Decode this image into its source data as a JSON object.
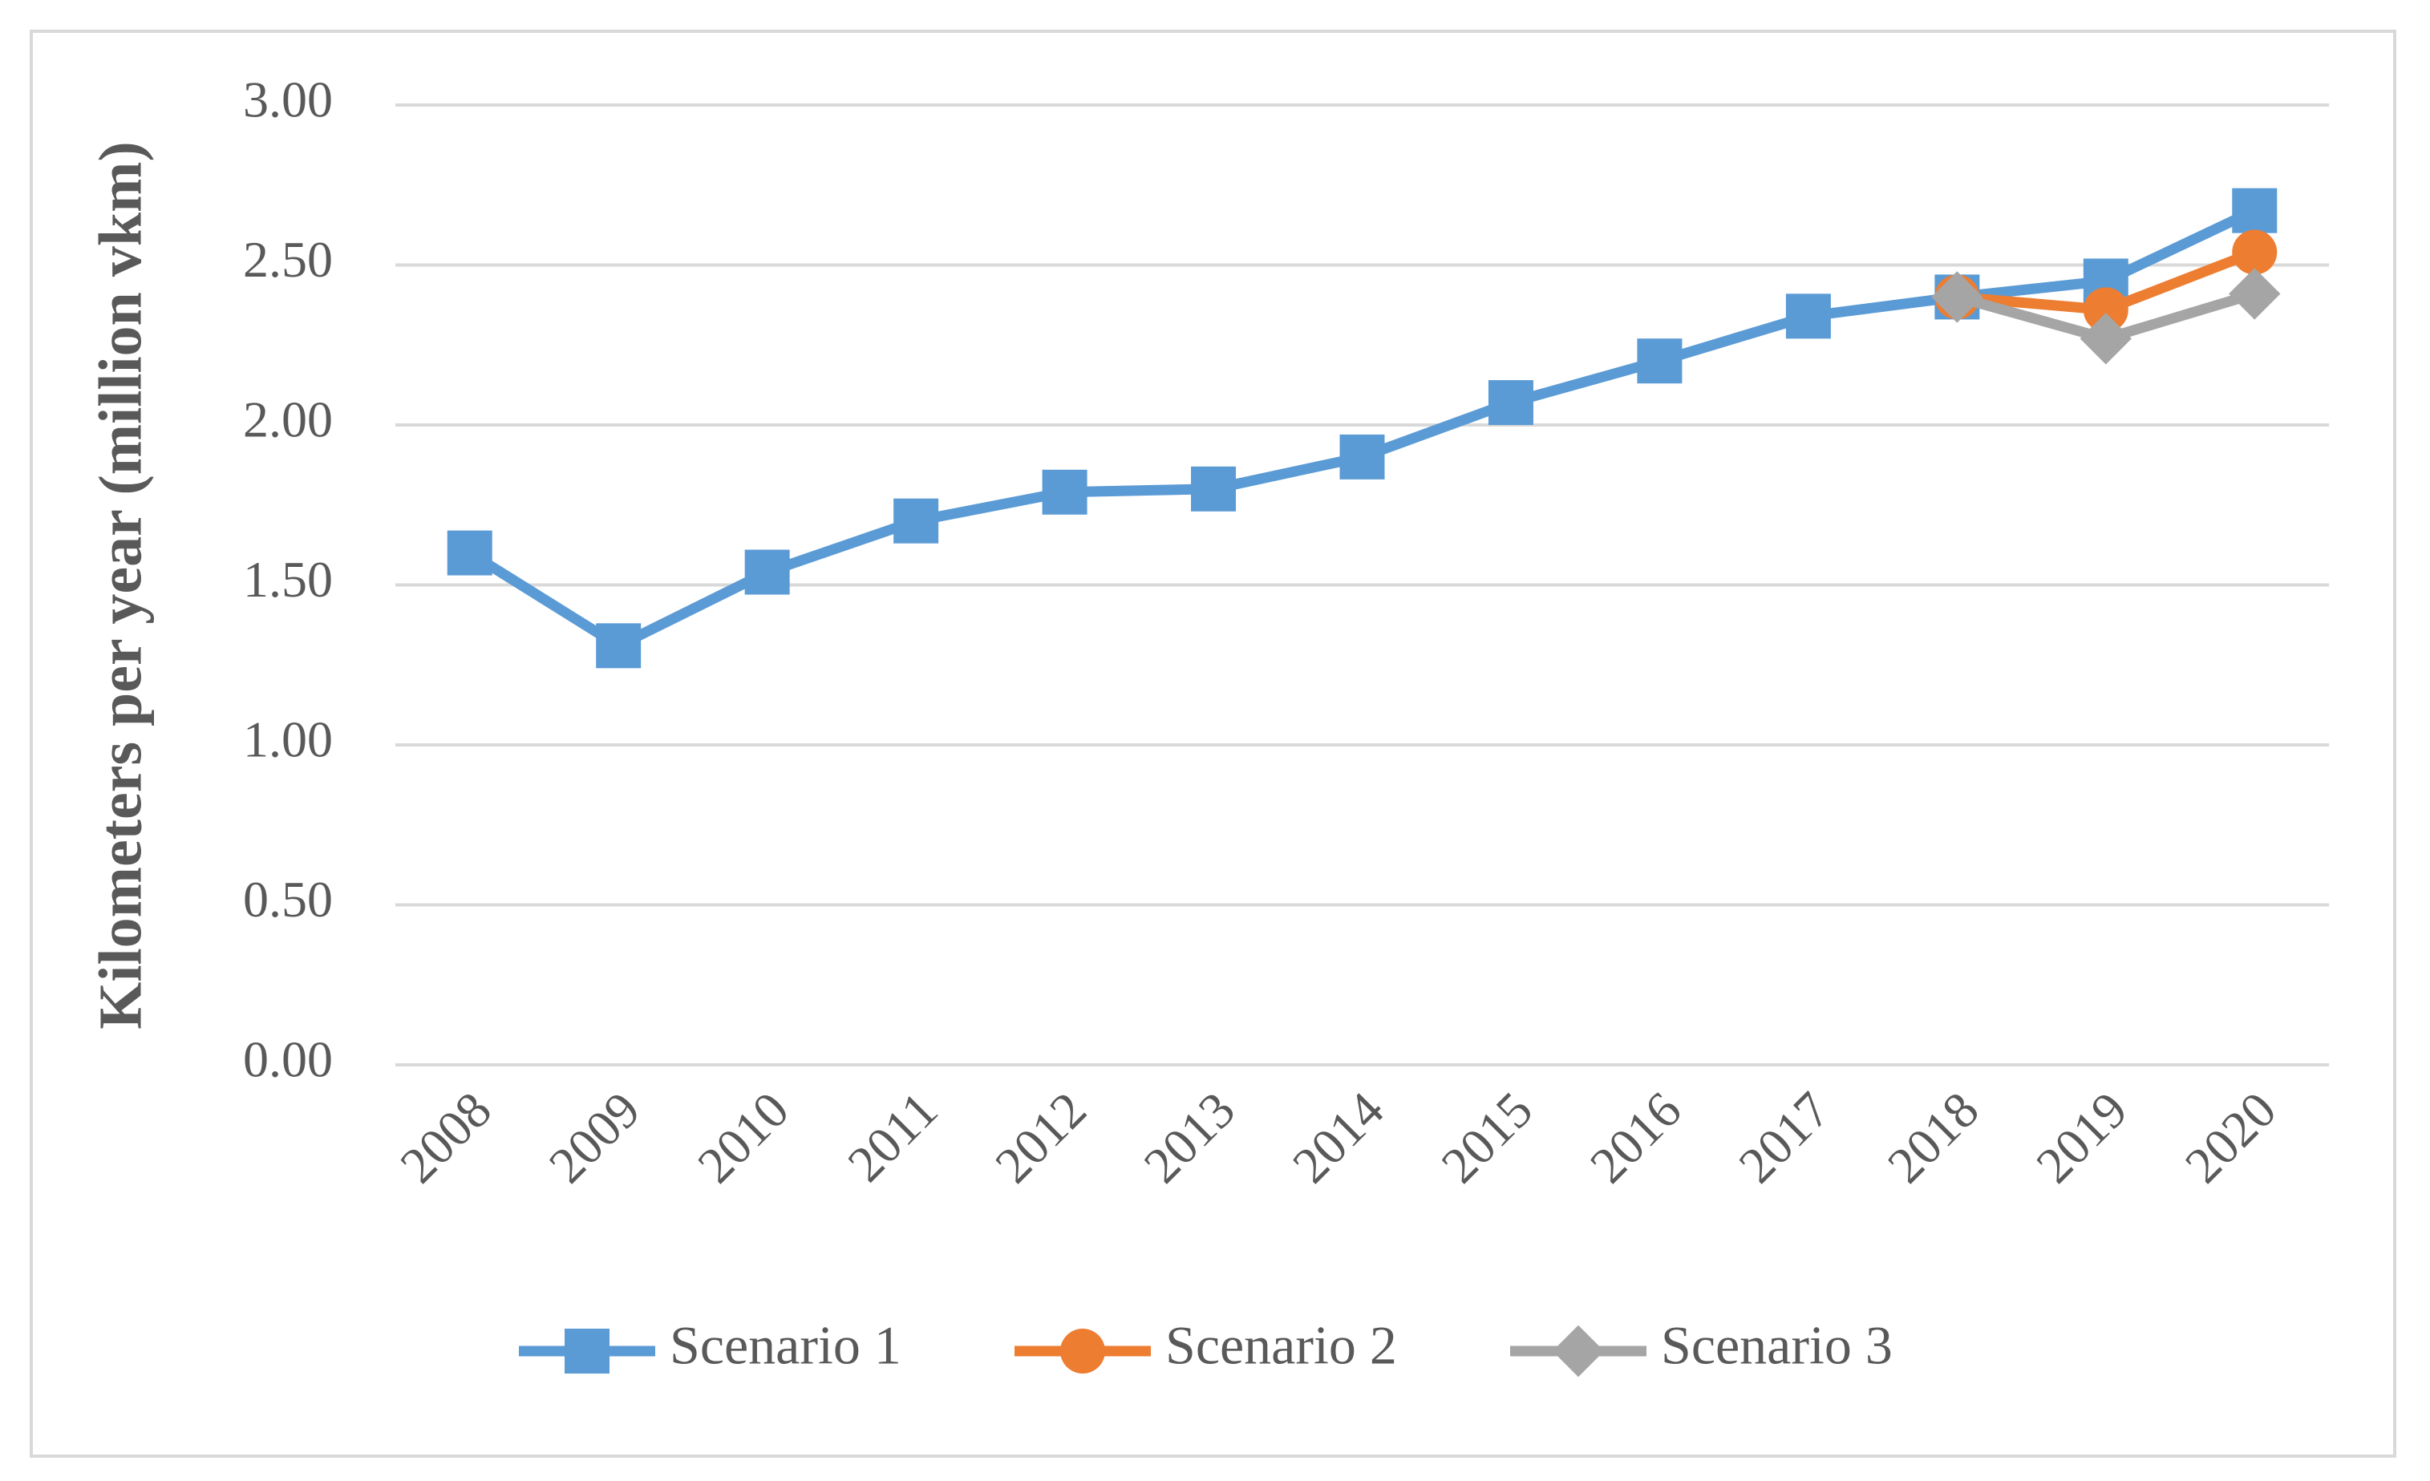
{
  "chart_data": {
    "type": "line",
    "y_label": "Kilometers per year (million vkm)",
    "categories": [
      "2008",
      "2009",
      "2010",
      "2011",
      "2012",
      "2013",
      "2014",
      "2015",
      "2016",
      "2017",
      "2018",
      "2019",
      "2020"
    ],
    "series": [
      {
        "name": "Scenario 1",
        "color": "#5b9bd5",
        "marker": "square",
        "values": [
          1.6,
          1.31,
          1.54,
          1.7,
          1.79,
          1.8,
          1.9,
          2.07,
          2.2,
          2.34,
          2.4,
          2.45,
          2.67
        ]
      },
      {
        "name": "Scenario 2",
        "color": "#ed7d31",
        "marker": "circle",
        "values": [
          null,
          null,
          null,
          null,
          null,
          null,
          null,
          null,
          null,
          null,
          2.4,
          2.36,
          2.54
        ]
      },
      {
        "name": "Scenario 3",
        "color": "#a5a5a5",
        "marker": "diamond",
        "values": [
          null,
          null,
          null,
          null,
          null,
          null,
          null,
          null,
          null,
          null,
          2.4,
          2.27,
          2.41
        ]
      }
    ],
    "ylim": [
      0,
      3
    ],
    "yticks": [
      {
        "value": 0,
        "label": "0.00"
      },
      {
        "value": 0.5,
        "label": "0.50"
      },
      {
        "value": 1,
        "label": "1.00"
      },
      {
        "value": 1.5,
        "label": "1.50"
      },
      {
        "value": 2,
        "label": "2.00"
      },
      {
        "value": 2.5,
        "label": "2.50"
      },
      {
        "value": 3,
        "label": "3.00"
      }
    ],
    "grid": true,
    "legend": "bottom"
  }
}
